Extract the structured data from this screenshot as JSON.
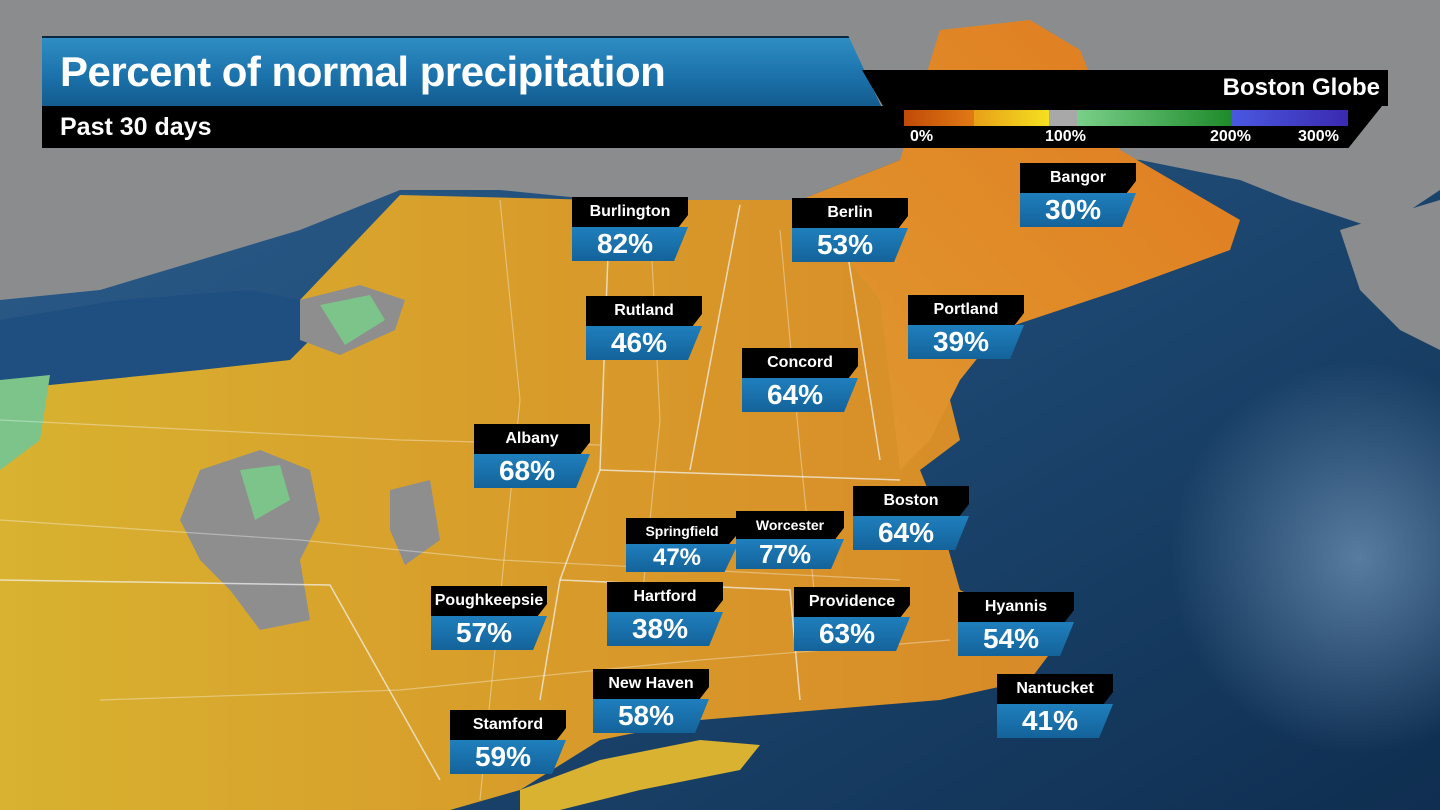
{
  "header": {
    "title": "Percent of normal precipitation",
    "subtitle": "Past 30 days",
    "brand": "Boston Globe"
  },
  "legend": {
    "labels": [
      "0%",
      "100%",
      "200%",
      "300%"
    ],
    "colors": {
      "dry": "#d9580a",
      "below": "#e8b020",
      "normal": "#f0e020",
      "gray": "#a0a0a0",
      "wet": "#60c080",
      "verywet": "#208030",
      "extreme": "#4a50d0"
    }
  },
  "cities": [
    {
      "name": "Burlington",
      "value": "82%"
    },
    {
      "name": "Berlin",
      "value": "53%"
    },
    {
      "name": "Bangor",
      "value": "30%"
    },
    {
      "name": "Rutland",
      "value": "46%"
    },
    {
      "name": "Portland",
      "value": "39%"
    },
    {
      "name": "Concord",
      "value": "64%"
    },
    {
      "name": "Albany",
      "value": "68%"
    },
    {
      "name": "Boston",
      "value": "64%"
    },
    {
      "name": "Springfield",
      "value": "47%"
    },
    {
      "name": "Worcester",
      "value": "77%"
    },
    {
      "name": "Poughkeepsie",
      "value": "57%"
    },
    {
      "name": "Hartford",
      "value": "38%"
    },
    {
      "name": "Providence",
      "value": "63%"
    },
    {
      "name": "Hyannis",
      "value": "54%"
    },
    {
      "name": "New Haven",
      "value": "58%"
    },
    {
      "name": "Nantucket",
      "value": "41%"
    },
    {
      "name": "Stamford",
      "value": "59%"
    }
  ]
}
